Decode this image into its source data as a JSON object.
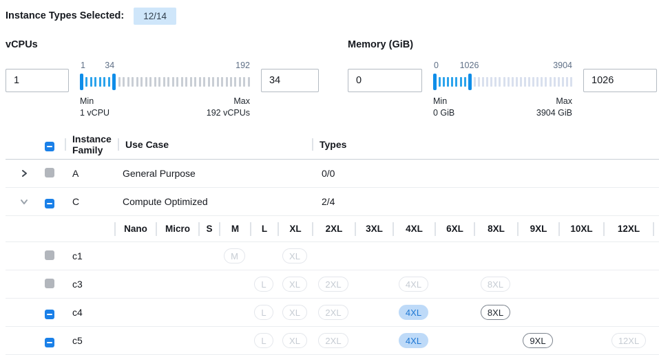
{
  "colors": {
    "accent_blue": "#1a80e8",
    "badge_bg": "#cfe6fa",
    "slider_handle": "#0f8de8",
    "slider_tick_active": "#2ba3ec",
    "slider_tick_idle_vcpus": "#c9ced5",
    "slider_tick_idle_memory": "#d9e0ee",
    "selected_pill_bg": "#bedaf8",
    "selected_pill_text": "#1f78d4"
  },
  "header": {
    "label": "Instance Types Selected:",
    "badge": "12/14"
  },
  "filters": {
    "vcpus": {
      "title": "vCPUs",
      "min_value": "1",
      "max_value": "34",
      "scale": {
        "low": "1",
        "mid": "34",
        "high": "192"
      },
      "min_label": "Min",
      "min_detail": "1 vCPU",
      "max_label": "Max",
      "max_detail": "192 vCPUs",
      "slider": {
        "ticks_in_range": 6,
        "ticks_out_range": 30,
        "mid_position_pct": 17.5
      }
    },
    "memory": {
      "title": "Memory (GiB)",
      "min_value": "0",
      "max_value": "1026",
      "scale": {
        "low": "0",
        "mid": "1026",
        "high": "3904"
      },
      "min_label": "Min",
      "min_detail": "0 GiB",
      "max_label": "Max",
      "max_detail": "3904 GiB",
      "slider": {
        "ticks_in_range": 7,
        "ticks_out_range": 24,
        "mid_position_pct": 26
      }
    }
  },
  "table": {
    "columns": {
      "family": "Instance Family",
      "use_case": "Use Case",
      "types": "Types"
    },
    "family_rows": [
      {
        "name": "A",
        "use_case": "General Purpose",
        "types": "0/0",
        "expanded": false,
        "checkbox": "disabled"
      },
      {
        "name": "C",
        "use_case": "Compute Optimized",
        "types": "2/4",
        "expanded": true,
        "checkbox": "indeterminate"
      }
    ],
    "sizes": [
      "Nano",
      "Micro",
      "S",
      "M",
      "L",
      "XL",
      "2XL",
      "3XL",
      "4XL",
      "6XL",
      "8XL",
      "9XL",
      "10XL",
      "12XL"
    ],
    "instance_rows": [
      {
        "name": "c1",
        "checkbox": "disabled",
        "pills": [
          {
            "size": "M",
            "state": "disabled"
          },
          {
            "size": "XL",
            "state": "disabled"
          }
        ]
      },
      {
        "name": "c3",
        "checkbox": "disabled",
        "pills": [
          {
            "size": "L",
            "state": "disabled"
          },
          {
            "size": "XL",
            "state": "disabled"
          },
          {
            "size": "2XL",
            "state": "disabled"
          },
          {
            "size": "4XL",
            "state": "disabled"
          },
          {
            "size": "8XL",
            "state": "disabled"
          }
        ]
      },
      {
        "name": "c4",
        "checkbox": "indeterminate",
        "pills": [
          {
            "size": "L",
            "state": "disabled"
          },
          {
            "size": "XL",
            "state": "disabled"
          },
          {
            "size": "2XL",
            "state": "disabled"
          },
          {
            "size": "4XL",
            "state": "selected"
          },
          {
            "size": "8XL",
            "state": "available"
          }
        ]
      },
      {
        "name": "c5",
        "checkbox": "indeterminate",
        "pills": [
          {
            "size": "L",
            "state": "disabled"
          },
          {
            "size": "XL",
            "state": "disabled"
          },
          {
            "size": "2XL",
            "state": "disabled"
          },
          {
            "size": "4XL",
            "state": "selected"
          },
          {
            "size": "9XL",
            "state": "available"
          },
          {
            "size": "12XL",
            "state": "disabled"
          }
        ]
      }
    ]
  }
}
